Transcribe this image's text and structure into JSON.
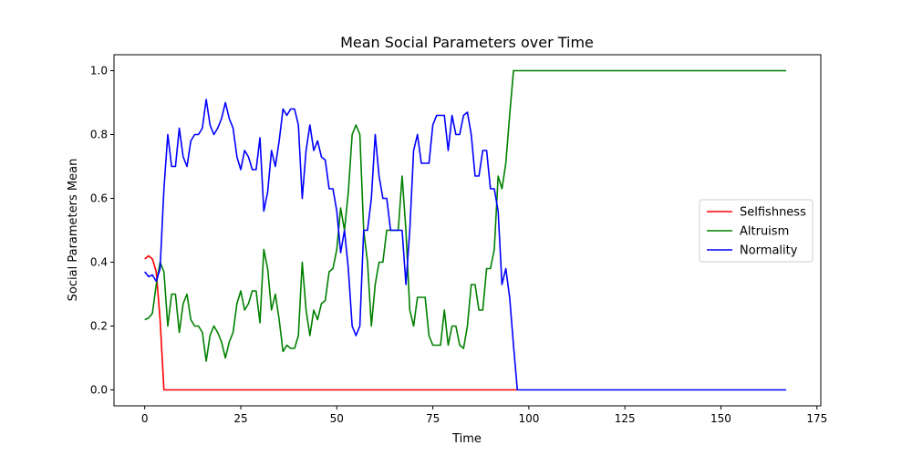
{
  "chart_data": {
    "type": "line",
    "title": "Mean Social Parameters over Time",
    "xlabel": "Time",
    "ylabel": "Social Parameters Mean",
    "xlim": [
      -8,
      176
    ],
    "ylim": [
      -0.05,
      1.05
    ],
    "xticks": [
      "0",
      "25",
      "50",
      "75",
      "100",
      "125",
      "150",
      "175"
    ],
    "yticks": [
      "0.0",
      "0.2",
      "0.4",
      "0.6",
      "0.8",
      "1.0"
    ],
    "grid": false,
    "legend_position": "center-right",
    "series": [
      {
        "name": "Selfishness",
        "color": "#ff0000",
        "points": [
          [
            0,
            0.41
          ],
          [
            1,
            0.42
          ],
          [
            2,
            0.41
          ],
          [
            3,
            0.37
          ],
          [
            4,
            0.22
          ],
          [
            5,
            0.0
          ],
          [
            97,
            0.0
          ]
        ]
      },
      {
        "name": "Altruism",
        "color": "#008000",
        "points": [
          [
            0,
            0.22
          ],
          [
            1,
            0.225
          ],
          [
            2,
            0.24
          ],
          [
            3,
            0.33
          ],
          [
            4,
            0.4
          ],
          [
            5,
            0.37
          ],
          [
            6,
            0.2
          ],
          [
            7,
            0.3
          ],
          [
            8,
            0.3
          ],
          [
            9,
            0.18
          ],
          [
            10,
            0.27
          ],
          [
            11,
            0.3
          ],
          [
            12,
            0.22
          ],
          [
            13,
            0.2
          ],
          [
            14,
            0.2
          ],
          [
            15,
            0.18
          ],
          [
            16,
            0.09
          ],
          [
            17,
            0.17
          ],
          [
            18,
            0.2
          ],
          [
            19,
            0.18
          ],
          [
            20,
            0.15
          ],
          [
            21,
            0.1
          ],
          [
            22,
            0.15
          ],
          [
            23,
            0.18
          ],
          [
            24,
            0.27
          ],
          [
            25,
            0.31
          ],
          [
            26,
            0.25
          ],
          [
            27,
            0.27
          ],
          [
            28,
            0.31
          ],
          [
            29,
            0.31
          ],
          [
            30,
            0.21
          ],
          [
            31,
            0.44
          ],
          [
            32,
            0.38
          ],
          [
            33,
            0.25
          ],
          [
            34,
            0.3
          ],
          [
            35,
            0.22
          ],
          [
            36,
            0.12
          ],
          [
            37,
            0.14
          ],
          [
            38,
            0.13
          ],
          [
            39,
            0.13
          ],
          [
            40,
            0.17
          ],
          [
            41,
            0.4
          ],
          [
            42,
            0.25
          ],
          [
            43,
            0.17
          ],
          [
            44,
            0.25
          ],
          [
            45,
            0.22
          ],
          [
            46,
            0.27
          ],
          [
            47,
            0.28
          ],
          [
            48,
            0.37
          ],
          [
            49,
            0.38
          ],
          [
            50,
            0.44
          ],
          [
            51,
            0.57
          ],
          [
            52,
            0.5
          ],
          [
            53,
            0.62
          ],
          [
            54,
            0.8
          ],
          [
            55,
            0.83
          ],
          [
            56,
            0.8
          ],
          [
            57,
            0.5
          ],
          [
            58,
            0.4
          ],
          [
            59,
            0.2
          ],
          [
            60,
            0.33
          ],
          [
            61,
            0.4
          ],
          [
            62,
            0.4
          ],
          [
            63,
            0.5
          ],
          [
            64,
            0.5
          ],
          [
            65,
            0.5
          ],
          [
            66,
            0.5
          ],
          [
            67,
            0.67
          ],
          [
            68,
            0.5
          ],
          [
            69,
            0.25
          ],
          [
            70,
            0.2
          ],
          [
            71,
            0.29
          ],
          [
            72,
            0.29
          ],
          [
            73,
            0.29
          ],
          [
            74,
            0.17
          ],
          [
            75,
            0.14
          ],
          [
            76,
            0.14
          ],
          [
            77,
            0.14
          ],
          [
            78,
            0.25
          ],
          [
            79,
            0.14
          ],
          [
            80,
            0.2
          ],
          [
            81,
            0.2
          ],
          [
            82,
            0.14
          ],
          [
            83,
            0.13
          ],
          [
            84,
            0.2
          ],
          [
            85,
            0.33
          ],
          [
            86,
            0.33
          ],
          [
            87,
            0.25
          ],
          [
            88,
            0.25
          ],
          [
            89,
            0.38
          ],
          [
            90,
            0.38
          ],
          [
            91,
            0.44
          ],
          [
            92,
            0.67
          ],
          [
            93,
            0.63
          ],
          [
            94,
            0.71
          ],
          [
            95,
            0.86
          ],
          [
            96,
            1.0
          ],
          [
            167,
            1.0
          ]
        ]
      },
      {
        "name": "Normality",
        "color": "#0000ff",
        "points": [
          [
            0,
            0.37
          ],
          [
            1,
            0.355
          ],
          [
            2,
            0.36
          ],
          [
            3,
            0.34
          ],
          [
            4,
            0.38
          ],
          [
            5,
            0.63
          ],
          [
            6,
            0.8
          ],
          [
            7,
            0.7
          ],
          [
            8,
            0.7
          ],
          [
            9,
            0.82
          ],
          [
            10,
            0.73
          ],
          [
            11,
            0.7
          ],
          [
            12,
            0.78
          ],
          [
            13,
            0.8
          ],
          [
            14,
            0.8
          ],
          [
            15,
            0.82
          ],
          [
            16,
            0.91
          ],
          [
            17,
            0.83
          ],
          [
            18,
            0.8
          ],
          [
            19,
            0.82
          ],
          [
            20,
            0.85
          ],
          [
            21,
            0.9
          ],
          [
            22,
            0.85
          ],
          [
            23,
            0.82
          ],
          [
            24,
            0.73
          ],
          [
            25,
            0.69
          ],
          [
            26,
            0.75
          ],
          [
            27,
            0.73
          ],
          [
            28,
            0.69
          ],
          [
            29,
            0.69
          ],
          [
            30,
            0.79
          ],
          [
            31,
            0.56
          ],
          [
            32,
            0.62
          ],
          [
            33,
            0.75
          ],
          [
            34,
            0.7
          ],
          [
            35,
            0.78
          ],
          [
            36,
            0.88
          ],
          [
            37,
            0.86
          ],
          [
            38,
            0.88
          ],
          [
            39,
            0.88
          ],
          [
            40,
            0.83
          ],
          [
            41,
            0.6
          ],
          [
            42,
            0.75
          ],
          [
            43,
            0.83
          ],
          [
            44,
            0.75
          ],
          [
            45,
            0.78
          ],
          [
            46,
            0.73
          ],
          [
            47,
            0.72
          ],
          [
            48,
            0.63
          ],
          [
            49,
            0.63
          ],
          [
            50,
            0.56
          ],
          [
            51,
            0.43
          ],
          [
            52,
            0.5
          ],
          [
            53,
            0.38
          ],
          [
            54,
            0.2
          ],
          [
            55,
            0.17
          ],
          [
            56,
            0.2
          ],
          [
            57,
            0.5
          ],
          [
            58,
            0.5
          ],
          [
            59,
            0.6
          ],
          [
            60,
            0.8
          ],
          [
            61,
            0.67
          ],
          [
            62,
            0.6
          ],
          [
            63,
            0.6
          ],
          [
            64,
            0.5
          ],
          [
            65,
            0.5
          ],
          [
            66,
            0.5
          ],
          [
            67,
            0.5
          ],
          [
            68,
            0.33
          ],
          [
            69,
            0.5
          ],
          [
            70,
            0.75
          ],
          [
            71,
            0.8
          ],
          [
            72,
            0.71
          ],
          [
            73,
            0.71
          ],
          [
            74,
            0.71
          ],
          [
            75,
            0.83
          ],
          [
            76,
            0.86
          ],
          [
            77,
            0.86
          ],
          [
            78,
            0.86
          ],
          [
            79,
            0.75
          ],
          [
            80,
            0.86
          ],
          [
            81,
            0.8
          ],
          [
            82,
            0.8
          ],
          [
            83,
            0.86
          ],
          [
            84,
            0.87
          ],
          [
            85,
            0.8
          ],
          [
            86,
            0.67
          ],
          [
            87,
            0.67
          ],
          [
            88,
            0.75
          ],
          [
            89,
            0.75
          ],
          [
            90,
            0.63
          ],
          [
            91,
            0.63
          ],
          [
            92,
            0.56
          ],
          [
            93,
            0.33
          ],
          [
            94,
            0.38
          ],
          [
            95,
            0.29
          ],
          [
            96,
            0.14
          ],
          [
            97,
            0.0
          ],
          [
            167,
            0.0
          ]
        ]
      }
    ]
  }
}
